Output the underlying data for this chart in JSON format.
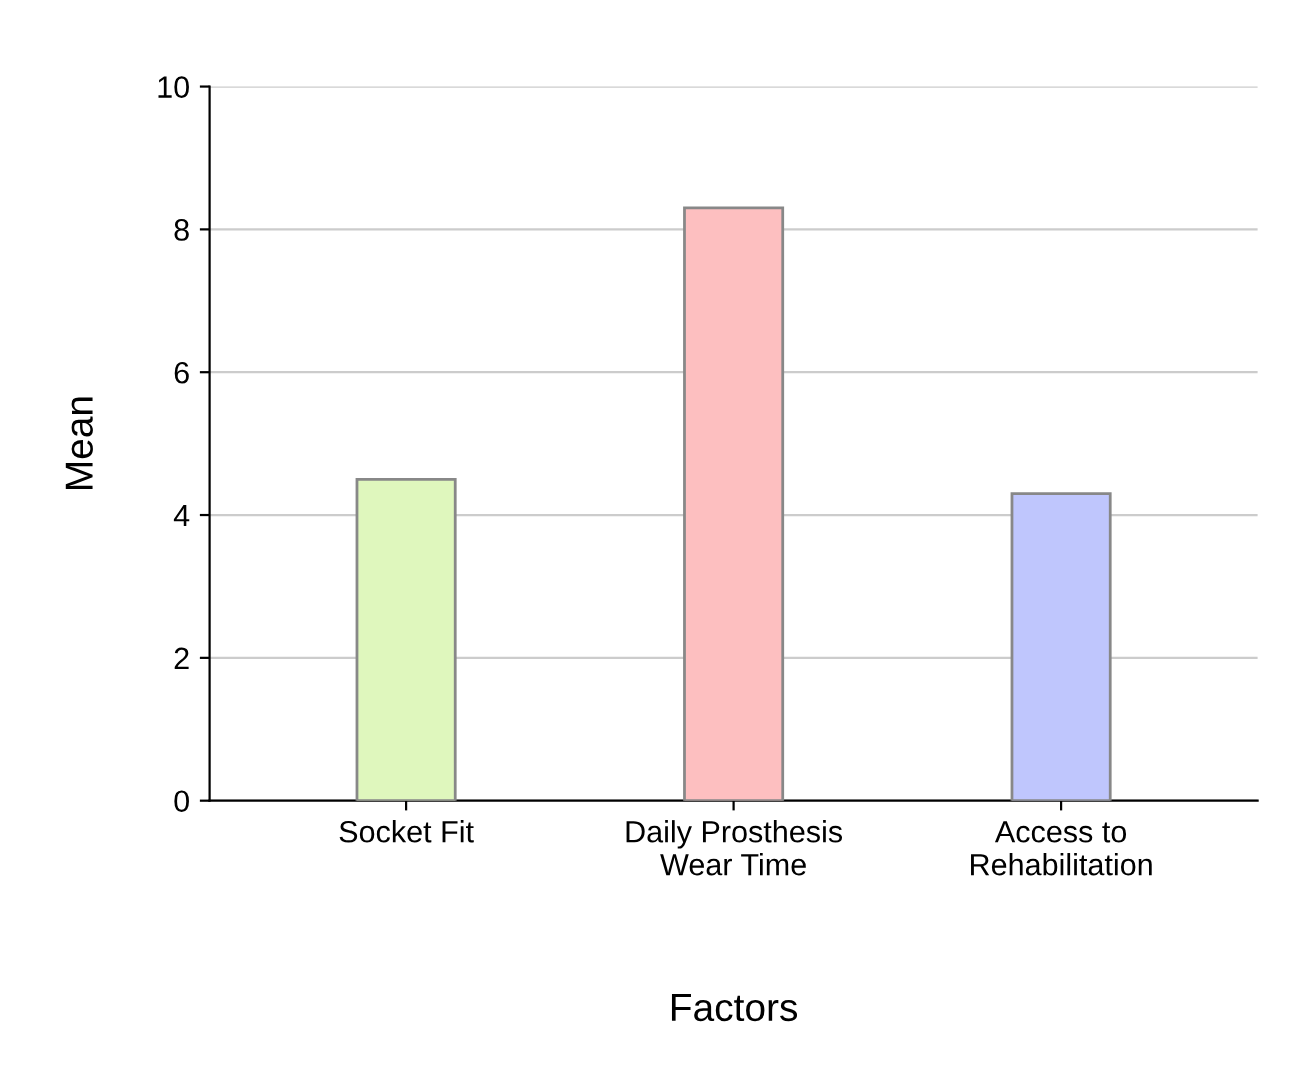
{
  "chart_data": {
    "type": "bar",
    "xlabel": "Factors",
    "ylabel": "Mean",
    "categories": [
      "Socket Fit",
      "Daily Prosthesis\nWear Time",
      "Access to\nRehabilitation"
    ],
    "values": [
      4.5,
      8.3,
      4.3
    ],
    "colors": [
      "#dff7bd",
      "#fdbfc0",
      "#bfc6fd"
    ],
    "ylim": [
      0,
      10
    ],
    "yticks": [
      0,
      2,
      4,
      6,
      8,
      10
    ],
    "grid": "y"
  }
}
